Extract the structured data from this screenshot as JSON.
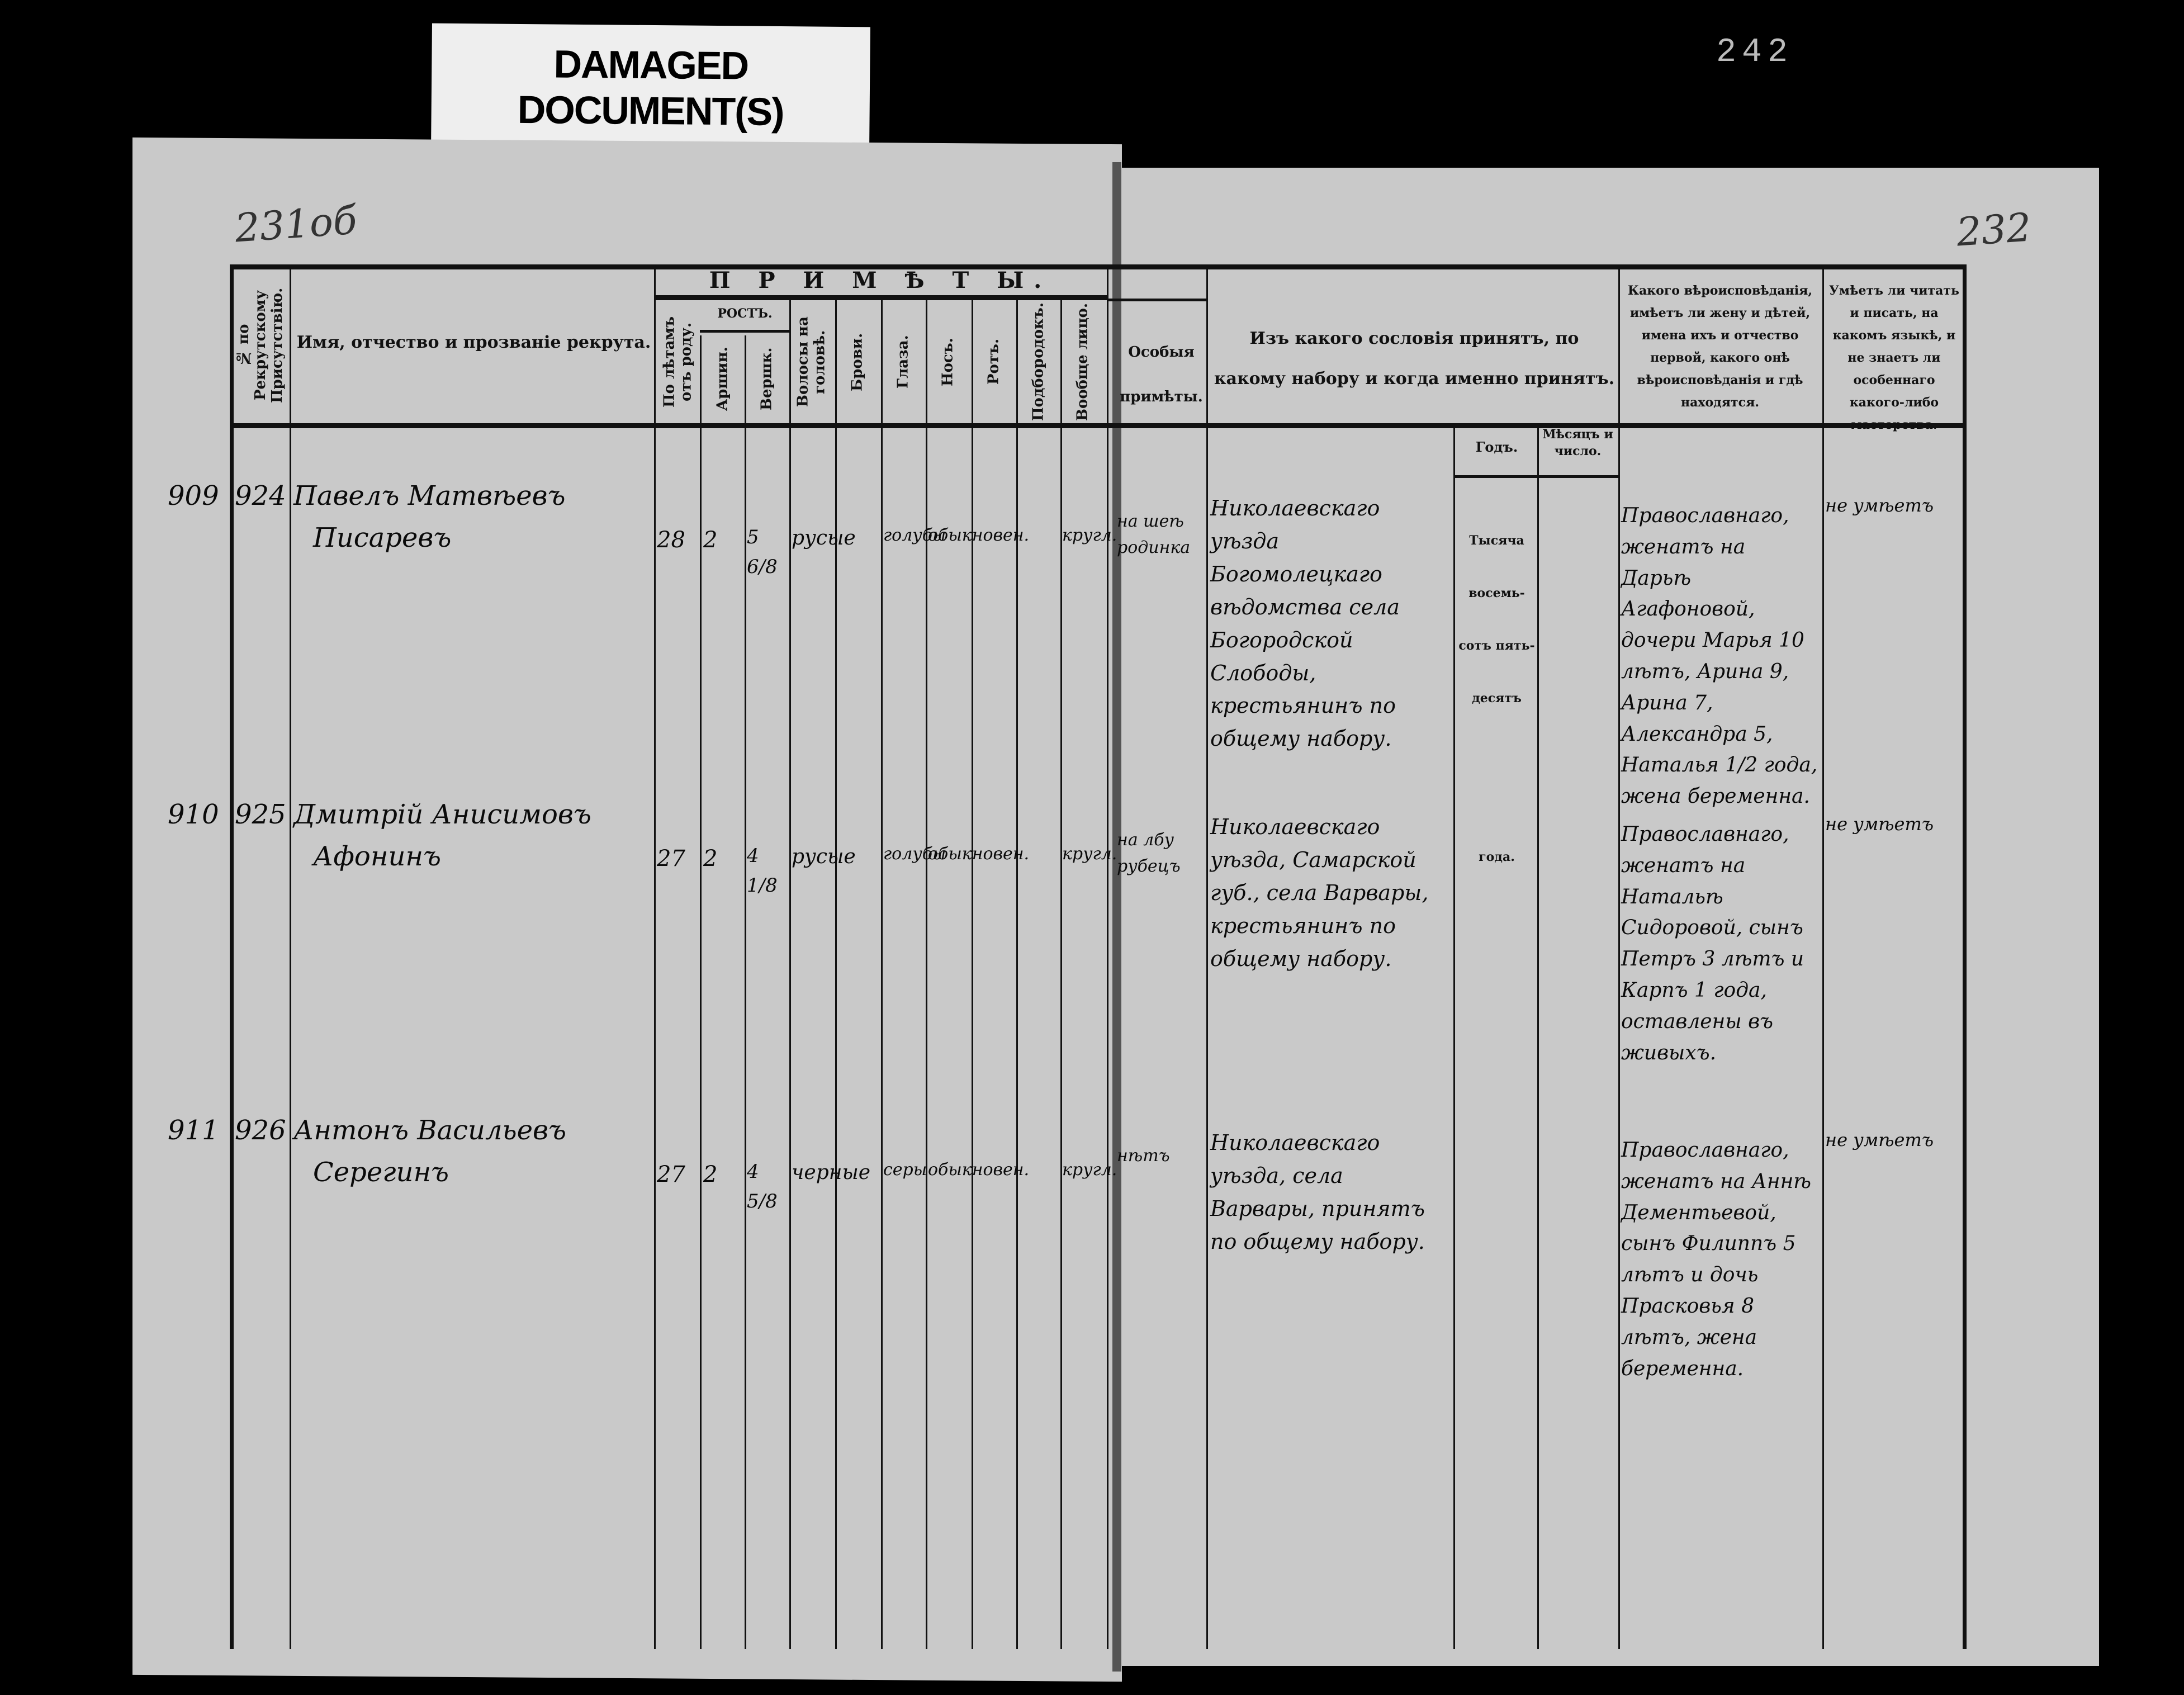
{
  "overlay_label": {
    "line1": "DAMAGED",
    "line2": "DOCUMENT(S)"
  },
  "archive_stamp": "242",
  "page_numbers": {
    "left": "231об",
    "right": "232"
  },
  "header": {
    "col_number": "№ по Рекрутскому Присутствію.",
    "col_name": "Имя, отчество и прозваніе рекрута.",
    "signs_title": "П Р И М Ѣ Т Ы.",
    "col_age": "По лѣтамъ отъ роду.",
    "height_title": "РОСТЪ.",
    "col_arshin": "Аршин.",
    "col_vershok": "Вершк.",
    "col_hair": "Волосы на головѣ.",
    "col_brows": "Брови.",
    "col_eyes": "Глаза.",
    "col_nose": "Носъ.",
    "col_mouth": "Ротъ.",
    "col_chin": "Подбородокъ.",
    "col_face": "Вообще лицо.",
    "col_special": "Особыя примѣты.",
    "col_estate": "Изъ какого сословія принятъ, по какому набору и когда именно принятъ.",
    "col_year": "Годъ.",
    "col_month": "Мѣсяцъ и число.",
    "col_religion": "Какого вѣроисповѣданія, имѣетъ ли жену и дѣтей, имена ихъ и отчество первой, какого онѣ вѣроисповѣданія и гдѣ находятся.",
    "col_literacy": "Умѣетъ ли читать и писать, на какомъ языкѣ, и не знаетъ ли особеннаго какого-либо мастерства."
  },
  "year_text": {
    "l1": "Тысяча",
    "l2": "восемь-",
    "l3": "сотъ пять-",
    "l4": "десятъ",
    "l5": "года."
  },
  "rows": [
    {
      "margin": "909",
      "number": "924",
      "name1": "Павелъ Матвѣевъ",
      "name2": "Писаревъ",
      "age": "28",
      "arshin": "2",
      "vershok": "5 6/8",
      "hair": "русые",
      "eyes": "голубы",
      "nose": "обыкновен.",
      "chin": "кругл.",
      "special": "на шеѣ родинка",
      "estate": "Николаевскаго уѣзда Богомолецкаго вѣдомства села Богородской Слободы, крестьянинъ по общему набору.",
      "religion": "Православнаго, женатъ на Дарьѣ Агафоновой, дочери Марья 10 лѣтъ, Арина 9, Арина 7, Александра 5, Наталья 1/2 года, жена беременна.",
      "literacy": "не умѣетъ"
    },
    {
      "margin": "910",
      "number": "925",
      "name1": "Дмитрій Анисимовъ",
      "name2": "Афонинъ",
      "age": "27",
      "arshin": "2",
      "vershok": "4 1/8",
      "hair": "русые",
      "eyes": "голубы",
      "nose": "обыкновен.",
      "chin": "кругл.",
      "special": "на лбу рубецъ",
      "estate": "Николаевскаго уѣзда, Самарской губ., села Варвары, крестьянинъ по общему набору.",
      "religion": "Православнаго, женатъ на Натальѣ Сидоровой, сынъ Петръ 3 лѣтъ и Карпъ 1 года, оставлены въ живыхъ.",
      "literacy": "не умѣетъ"
    },
    {
      "margin": "911",
      "number": "926",
      "name1": "Антонъ Васильевъ",
      "name2": "Серегинъ",
      "age": "27",
      "arshin": "2",
      "vershok": "4 5/8",
      "hair": "черные",
      "eyes": "серы",
      "nose": "обыкновен.",
      "chin": "кругл.",
      "special": "нѣтъ",
      "estate": "Николаевскаго уѣзда, села Варвары, принятъ по общему набору.",
      "religion": "Православнаго, женатъ на Аннѣ Дементьевой, сынъ Филиппъ 5 лѣтъ и дочь Прасковья 8 лѣтъ, жена беременна.",
      "literacy": "не умѣетъ"
    }
  ]
}
